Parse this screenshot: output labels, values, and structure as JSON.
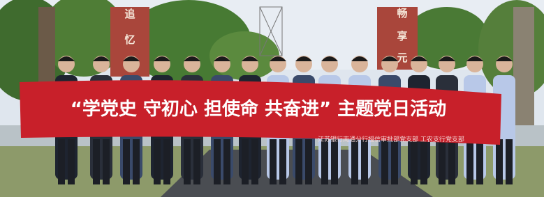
{
  "banner": {
    "title": "“学党史 守初心 担使命 共奋进” 主题党日活动",
    "subtitle": "江苏银行南通分行授信审批部党支部  工农支行党支部"
  },
  "pillars": {
    "left": [
      "追",
      "忆"
    ],
    "right": [
      "畅",
      "享",
      "元"
    ]
  }
}
